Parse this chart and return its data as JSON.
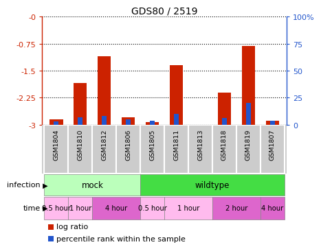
{
  "title": "GDS80 / 2519",
  "samples": [
    "GSM1804",
    "GSM1810",
    "GSM1812",
    "GSM1806",
    "GSM1805",
    "GSM1811",
    "GSM1813",
    "GSM1818",
    "GSM1819",
    "GSM1807"
  ],
  "log_ratios": [
    -2.85,
    -1.85,
    -1.1,
    -2.8,
    -2.93,
    -1.35,
    -3.0,
    -2.1,
    -0.82,
    -2.88
  ],
  "percentile_ranks": [
    3,
    7,
    8,
    5,
    4,
    10,
    0,
    6,
    20,
    4
  ],
  "ylim_left": [
    -3.0,
    0.0
  ],
  "ylim_right": [
    0,
    100
  ],
  "yticks_left": [
    -3.0,
    -2.25,
    -1.5,
    -0.75,
    0.0
  ],
  "yticks_right": [
    0,
    25,
    50,
    75,
    100
  ],
  "ytick_labels_left": [
    "-3",
    "-2.25",
    "-1.5",
    "-0.75",
    "-0"
  ],
  "ytick_labels_right": [
    "0",
    "25",
    "50",
    "75",
    "100%"
  ],
  "bar_color": "#cc2200",
  "percentile_color": "#2255cc",
  "infection_groups": [
    {
      "label": "mock",
      "start": 0,
      "end": 3,
      "color": "#bbffbb"
    },
    {
      "label": "wildtype",
      "start": 4,
      "end": 9,
      "color": "#44dd44"
    }
  ],
  "time_groups": [
    {
      "label": "0.5 hour",
      "start": 0,
      "end": 0,
      "color": "#ffbbee"
    },
    {
      "label": "1 hour",
      "start": 1,
      "end": 1,
      "color": "#ffbbee"
    },
    {
      "label": "4 hour",
      "start": 2,
      "end": 3,
      "color": "#dd66cc"
    },
    {
      "label": "0.5 hour",
      "start": 4,
      "end": 4,
      "color": "#ffbbee"
    },
    {
      "label": "1 hour",
      "start": 5,
      "end": 6,
      "color": "#ffbbee"
    },
    {
      "label": "2 hour",
      "start": 7,
      "end": 8,
      "color": "#dd66cc"
    },
    {
      "label": "4 hour",
      "start": 9,
      "end": 9,
      "color": "#dd66cc"
    }
  ],
  "left_axis_color": "#cc2200",
  "right_axis_color": "#2255cc",
  "bar_width": 0.55,
  "pct_bar_width": 0.2,
  "sample_box_color": "#cccccc",
  "fig_bg": "#ffffff"
}
